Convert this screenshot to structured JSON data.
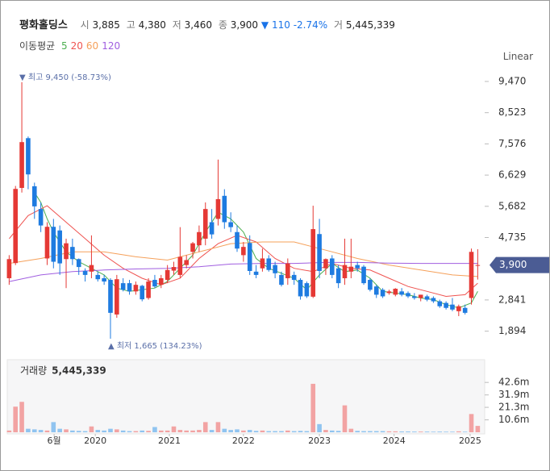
{
  "header": {
    "name": "평화홀딩스",
    "open_label": "시",
    "open": "3,885",
    "high_label": "고",
    "high": "4,380",
    "low_label": "저",
    "low": "3,460",
    "close_label": "종",
    "close": "3,900",
    "change_arrow": "▼",
    "change": "110",
    "change_pct": "-2.74%",
    "volume_label": "거",
    "volume": "5,445,339"
  },
  "controls": {
    "scale_button": "Linear"
  },
  "chart_data": [
    {
      "type": "candlestick",
      "ma_title": "이동평균",
      "up_color": "#e53935",
      "down_color": "#1e7be0",
      "xlim": [
        -0.3,
        75.1
      ],
      "ylim": [
        1395,
        9837
      ],
      "yticks": [
        {
          "value": 9470,
          "label": "9,470"
        },
        {
          "value": 8523,
          "label": "8,523"
        },
        {
          "value": 7576,
          "label": "7,576"
        },
        {
          "value": 6629,
          "label": "6,629"
        },
        {
          "value": 5682,
          "label": "5,682"
        },
        {
          "value": 4735,
          "label": "4,735"
        },
        {
          "value": 2841,
          "label": "2,841"
        },
        {
          "value": 1894,
          "label": "1,894"
        }
      ],
      "last_price": {
        "value": 3900,
        "label": "3,900",
        "color": "#4b5c94"
      },
      "annotations": [
        {
          "text": "▼ 최고 9,450 (-58.73%)",
          "x": 2,
          "y": 9450
        },
        {
          "text": "▲ 최저 1,665 (134.23%)",
          "x": 16,
          "y": 1665
        }
      ],
      "open": [
        3500,
        3960,
        6240,
        7750,
        6290,
        5600,
        4100,
        5060,
        4950,
        4080,
        4450,
        4080,
        3720,
        3700,
        3600,
        3500,
        3450,
        2400,
        3350,
        3350,
        3100,
        3270,
        2900,
        3450,
        3300,
        3450,
        3730,
        3600,
        3900,
        4300,
        4500,
        4700,
        5200,
        5300,
        6000,
        5200,
        4900,
        4200,
        4570,
        3700,
        3800,
        4100,
        3900,
        3600,
        3500,
        3600,
        3450,
        3350,
        2940,
        4840,
        3800,
        4100,
        3800,
        3500,
        3700,
        3900,
        3850,
        3450,
        3250,
        3150,
        3050,
        3000,
        3100,
        3050,
        2950,
        2900,
        2950,
        2900,
        2800,
        2750,
        2700,
        2500,
        2600,
        2900,
        3885
      ],
      "high": [
        4200,
        6300,
        9450,
        7800,
        6400,
        5800,
        5200,
        5300,
        5100,
        4700,
        4700,
        4100,
        3800,
        4800,
        3700,
        3600,
        3500,
        3600,
        3500,
        3450,
        3400,
        3300,
        3500,
        3600,
        3600,
        3900,
        4000,
        5050,
        4200,
        4600,
        5100,
        5800,
        5600,
        7100,
        6200,
        5500,
        5100,
        4600,
        4800,
        3900,
        4400,
        4200,
        4000,
        3700,
        4100,
        3700,
        3500,
        3400,
        5700,
        5300,
        4100,
        4200,
        3900,
        4700,
        4700,
        4000,
        3900,
        3500,
        3300,
        3200,
        3150,
        3200,
        3200,
        3100,
        3050,
        3000,
        3000,
        2950,
        2850,
        2800,
        2900,
        2700,
        2700,
        4400,
        4380
      ],
      "low": [
        3300,
        3900,
        6100,
        6200,
        5300,
        4900,
        3900,
        3800,
        3600,
        3200,
        3900,
        3600,
        3400,
        3500,
        3400,
        3300,
        1665,
        2300,
        3100,
        3000,
        3000,
        2800,
        2850,
        3200,
        3200,
        3350,
        3600,
        3500,
        3800,
        4100,
        4300,
        4500,
        4700,
        5100,
        5000,
        4900,
        4300,
        4000,
        3600,
        3500,
        3700,
        3700,
        3500,
        3250,
        3300,
        3300,
        2850,
        2900,
        2900,
        3500,
        3600,
        3500,
        3200,
        3300,
        3500,
        3700,
        3300,
        3100,
        2900,
        2900,
        3000,
        2950,
        2950,
        2900,
        2850,
        2800,
        2800,
        2750,
        2600,
        2550,
        2500,
        2350,
        2400,
        2700,
        3460
      ],
      "close": [
        4080,
        6210,
        7630,
        6650,
        5680,
        5100,
        5060,
        4000,
        3950,
        4560,
        4080,
        3840,
        3600,
        3900,
        3470,
        3400,
        2450,
        3470,
        3150,
        3100,
        3300,
        2860,
        3400,
        3250,
        3500,
        3750,
        3840,
        4150,
        4050,
        4560,
        4900,
        5600,
        4830,
        5900,
        5200,
        5050,
        4400,
        4450,
        3720,
        3600,
        4100,
        3750,
        3650,
        3300,
        3950,
        3450,
        2950,
        2950,
        4990,
        3720,
        4080,
        3600,
        3350,
        3900,
        3850,
        3800,
        3350,
        3150,
        3000,
        2950,
        3100,
        3180,
        3000,
        2950,
        2900,
        3000,
        2850,
        2800,
        2650,
        2600,
        2550,
        2650,
        2450,
        4300,
        3900
      ],
      "series": [
        {
          "name": "5",
          "color": "#4caf50",
          "x": [
            4,
            5,
            6,
            7,
            9,
            11,
            13,
            15,
            17,
            19,
            21,
            23,
            25,
            27,
            29,
            31,
            33,
            35,
            37,
            39,
            41,
            43,
            45,
            47,
            49,
            51,
            53,
            55,
            57,
            59,
            61,
            63,
            65,
            67,
            69,
            71,
            73,
            74
          ],
          "values": [
            6100,
            5800,
            5300,
            4900,
            4300,
            4000,
            3800,
            3600,
            3200,
            3100,
            3150,
            3200,
            3400,
            3800,
            4200,
            4900,
            5500,
            5300,
            4900,
            4100,
            3800,
            3650,
            3500,
            3150,
            3600,
            3950,
            3700,
            3750,
            3500,
            3100,
            3050,
            3000,
            2900,
            2850,
            2700,
            2600,
            2750,
            3100
          ]
        },
        {
          "name": "20",
          "color": "#ef5350",
          "x": [
            0,
            3,
            6,
            9,
            12,
            15,
            18,
            21,
            24,
            27,
            30,
            33,
            36,
            39,
            42,
            45,
            48,
            51,
            54,
            57,
            60,
            63,
            66,
            69,
            72,
            74
          ],
          "values": [
            4700,
            5400,
            5700,
            5200,
            4700,
            4200,
            3800,
            3500,
            3300,
            3500,
            4100,
            4550,
            4800,
            4600,
            4100,
            3800,
            3700,
            3950,
            3800,
            3750,
            3500,
            3250,
            3100,
            2950,
            3000,
            3350
          ]
        },
        {
          "name": "60",
          "color": "#f5a05a",
          "x": [
            0,
            5,
            10,
            15,
            20,
            25,
            30,
            35,
            40,
            45,
            50,
            55,
            60,
            65,
            70,
            74
          ],
          "values": [
            3950,
            4100,
            4300,
            4300,
            4150,
            4050,
            4300,
            4550,
            4600,
            4600,
            4350,
            4100,
            3900,
            3750,
            3600,
            3550
          ]
        },
        {
          "name": "120",
          "color": "#a05ee0",
          "x": [
            0,
            5,
            10,
            15,
            20,
            25,
            30,
            35,
            40,
            45,
            50,
            55,
            60,
            65,
            70,
            74
          ],
          "values": [
            3400,
            3600,
            3700,
            3750,
            3780,
            3800,
            3850,
            3930,
            3950,
            3950,
            3980,
            3980,
            3960,
            3950,
            3950,
            3950
          ]
        }
      ]
    },
    {
      "type": "bar",
      "title": "거래량",
      "title_value": "5,445,339",
      "up_color": "#f2a3a3",
      "down_color": "#90c4f0",
      "xlim": [
        -0.3,
        75.1
      ],
      "ylim": [
        0,
        62
      ],
      "yticks": [
        {
          "value": 42.6,
          "label": "42.6m"
        },
        {
          "value": 31.9,
          "label": "31.9m"
        },
        {
          "value": 21.3,
          "label": "21.3m"
        },
        {
          "value": 10.6,
          "label": "10.6m"
        }
      ],
      "xticks": [
        {
          "value": 7.1,
          "label": "6월"
        },
        {
          "value": 13.6,
          "label": "2020"
        },
        {
          "value": 25.3,
          "label": "2021"
        },
        {
          "value": 37,
          "label": "2022"
        },
        {
          "value": 49,
          "label": "2023"
        },
        {
          "value": 60.8,
          "label": "2024"
        },
        {
          "value": 72.8,
          "label": "2025"
        }
      ],
      "values": [
        1.5,
        21.9,
        26,
        3,
        2.5,
        2,
        1.5,
        8.7,
        3,
        2.5,
        1.5,
        1.2,
        1,
        5,
        2,
        1.5,
        3,
        2.5,
        1.5,
        1,
        1,
        1.5,
        1.2,
        4.5,
        1.5,
        1.5,
        5,
        2,
        1.5,
        1.5,
        2,
        8.7,
        2,
        8.7,
        3,
        2,
        2.5,
        1.5,
        2,
        1.2,
        1.5,
        1,
        1,
        1,
        1.5,
        1,
        1.2,
        1,
        41.4,
        7,
        2,
        1.5,
        1.2,
        23,
        3,
        1.2,
        1,
        1,
        1,
        1,
        0.8,
        0.8,
        0.7,
        0.7,
        0.6,
        0.6,
        0.6,
        0.5,
        0.6,
        0.5,
        0.5,
        0.8,
        0.5,
        15.6,
        5.445
      ]
    }
  ]
}
